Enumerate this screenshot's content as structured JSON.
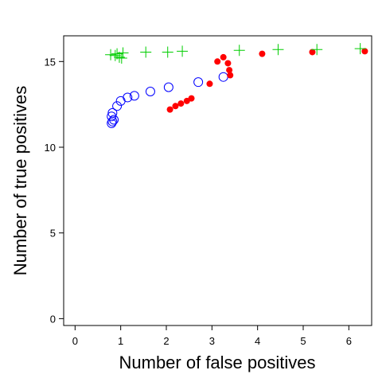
{
  "chart_data": {
    "type": "scatter",
    "title": "",
    "xlabel": "Number of false positives",
    "ylabel": "Number of true positives",
    "xlim": [
      -0.25,
      6.5
    ],
    "ylim": [
      -0.4,
      16.5
    ],
    "xticks": [
      0,
      1,
      2,
      3,
      4,
      5,
      6
    ],
    "yticks": [
      0,
      5,
      10,
      15
    ],
    "grid": false,
    "legend": "none",
    "series": [
      {
        "marker": "open-circle",
        "color": "#0000ff",
        "points": [
          [
            0.8,
            11.4
          ],
          [
            0.82,
            11.5
          ],
          [
            0.85,
            11.6
          ],
          [
            0.8,
            11.8
          ],
          [
            0.82,
            12.0
          ],
          [
            0.92,
            12.4
          ],
          [
            1.0,
            12.7
          ],
          [
            1.15,
            12.9
          ],
          [
            1.3,
            13.0
          ],
          [
            1.65,
            13.25
          ],
          [
            2.05,
            13.5
          ],
          [
            2.7,
            13.8
          ],
          [
            3.25,
            14.1
          ]
        ]
      },
      {
        "marker": "filled-circle",
        "color": "#ff0000",
        "points": [
          [
            2.08,
            12.2
          ],
          [
            2.2,
            12.4
          ],
          [
            2.32,
            12.55
          ],
          [
            2.45,
            12.7
          ],
          [
            2.55,
            12.85
          ],
          [
            2.95,
            13.7
          ],
          [
            3.12,
            15.0
          ],
          [
            3.25,
            15.25
          ],
          [
            3.35,
            14.9
          ],
          [
            3.38,
            14.5
          ],
          [
            3.4,
            14.2
          ],
          [
            4.1,
            15.45
          ],
          [
            5.2,
            15.55
          ],
          [
            6.35,
            15.6
          ]
        ]
      },
      {
        "marker": "plus",
        "color": "#00cd00",
        "points": [
          [
            0.78,
            15.4
          ],
          [
            0.88,
            15.35
          ],
          [
            0.92,
            15.45
          ],
          [
            0.97,
            15.25
          ],
          [
            1.02,
            15.2
          ],
          [
            1.05,
            15.5
          ],
          [
            1.55,
            15.55
          ],
          [
            2.03,
            15.55
          ],
          [
            2.35,
            15.6
          ],
          [
            3.6,
            15.65
          ],
          [
            4.45,
            15.7
          ],
          [
            5.3,
            15.7
          ],
          [
            6.25,
            15.75
          ]
        ]
      }
    ]
  }
}
